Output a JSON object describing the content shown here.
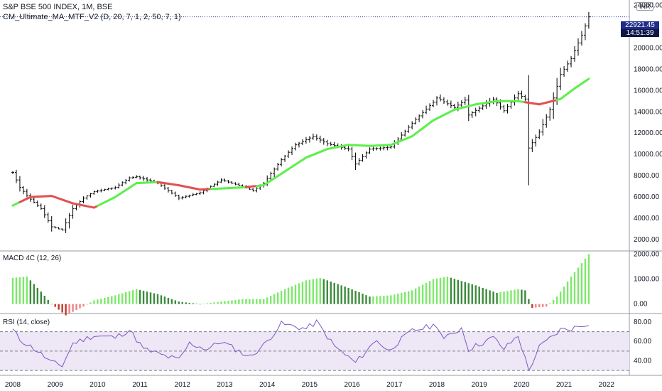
{
  "header": {
    "symbol_line": "S&P BSE 500 INDEX, 1M, BSE",
    "indicator_line": "CM_Ultimate_MA_MTF_V2 (D, 20, 7, 1, 2, 50, 7, 1)",
    "currency": "INR"
  },
  "last_price": {
    "value": "22921.45",
    "countdown": "14:51:39"
  },
  "colors": {
    "up_bar": "#000000",
    "ma_up": "#5cf04a",
    "ma_down": "#e35050",
    "macd_pos_rising": "#7de86b",
    "macd_pos_falling": "#3b8a3b",
    "macd_neg_rising": "#f08080",
    "macd_neg_falling": "#c0392b",
    "rsi_line": "#7e57c2",
    "rsi_band": "#ede7f6"
  },
  "chart_data": [
    {
      "type": "ohlc",
      "name": "S&P BSE 500 INDEX",
      "interval": "1M",
      "x_ticks": [
        "2008",
        "2009",
        "2010",
        "2011",
        "2012",
        "2013",
        "2014",
        "2015",
        "2016",
        "2017",
        "2018",
        "2019",
        "2020",
        "2021",
        "2022"
      ],
      "y_ticks": [
        "24000.00",
        "20000.00",
        "18000.00",
        "16000.00",
        "14000.00",
        "12000.00",
        "10000.00",
        "8000.00",
        "6000.00",
        "4000.00",
        "2000.00"
      ],
      "ylim": [
        1000,
        24500
      ],
      "close_anchors": [
        [
          "2008-01",
          8300
        ],
        [
          "2008-03",
          6900
        ],
        [
          "2008-06",
          5800
        ],
        [
          "2008-09",
          4900
        ],
        [
          "2008-12",
          3200
        ],
        [
          "2009-03",
          2900
        ],
        [
          "2009-06",
          4900
        ],
        [
          "2009-09",
          5900
        ],
        [
          "2009-12",
          6500
        ],
        [
          "2010-06",
          6900
        ],
        [
          "2010-10",
          7800
        ],
        [
          "2010-12",
          7900
        ],
        [
          "2011-06",
          7300
        ],
        [
          "2011-12",
          5900
        ],
        [
          "2012-06",
          6400
        ],
        [
          "2012-12",
          7600
        ],
        [
          "2013-06",
          7000
        ],
        [
          "2013-09",
          6600
        ],
        [
          "2013-12",
          7300
        ],
        [
          "2014-05",
          9500
        ],
        [
          "2014-09",
          10900
        ],
        [
          "2015-02",
          11700
        ],
        [
          "2015-06",
          11000
        ],
        [
          "2015-12",
          10500
        ],
        [
          "2016-02",
          9100
        ],
        [
          "2016-06",
          10500
        ],
        [
          "2016-12",
          10700
        ],
        [
          "2017-07",
          13300
        ],
        [
          "2017-12",
          14900
        ],
        [
          "2018-01",
          15300
        ],
        [
          "2018-06",
          14400
        ],
        [
          "2018-09",
          15100
        ],
        [
          "2018-10",
          13700
        ],
        [
          "2019-05",
          15200
        ],
        [
          "2019-08",
          14100
        ],
        [
          "2019-12",
          15700
        ],
        [
          "2020-02",
          15200
        ],
        [
          "2020-03",
          10600
        ],
        [
          "2020-06",
          12100
        ],
        [
          "2020-09",
          14200
        ],
        [
          "2020-12",
          17500
        ],
        [
          "2021-03",
          19000
        ],
        [
          "2021-06",
          21200
        ],
        [
          "2021-08",
          22921.45
        ]
      ],
      "ma_anchors": [
        [
          "2008-01",
          5200
        ],
        [
          "2008-06",
          6000
        ],
        [
          "2008-12",
          6100
        ],
        [
          "2009-06",
          5400
        ],
        [
          "2009-12",
          5000
        ],
        [
          "2010-06",
          6000
        ],
        [
          "2010-12",
          7300
        ],
        [
          "2011-06",
          7400
        ],
        [
          "2011-12",
          7100
        ],
        [
          "2012-06",
          6700
        ],
        [
          "2012-12",
          6800
        ],
        [
          "2013-06",
          6900
        ],
        [
          "2013-12",
          7100
        ],
        [
          "2014-06",
          8400
        ],
        [
          "2014-12",
          9700
        ],
        [
          "2015-06",
          10500
        ],
        [
          "2015-12",
          10900
        ],
        [
          "2016-06",
          10800
        ],
        [
          "2016-12",
          10900
        ],
        [
          "2017-06",
          11700
        ],
        [
          "2017-12",
          13200
        ],
        [
          "2018-06",
          14200
        ],
        [
          "2018-12",
          14700
        ],
        [
          "2019-06",
          15000
        ],
        [
          "2019-12",
          15000
        ],
        [
          "2020-06",
          14700
        ],
        [
          "2020-12",
          15200
        ],
        [
          "2021-04",
          16200
        ],
        [
          "2021-08",
          17100
        ]
      ],
      "ma_down_ranges": [
        [
          "2008-03",
          "2009-12"
        ],
        [
          "2011-06",
          "2012-08"
        ],
        [
          "2013-07",
          "2013-09"
        ],
        [
          "2020-02",
          "2020-10"
        ]
      ]
    },
    {
      "type": "histogram",
      "name": "MACD 4C (12, 26)",
      "y_ticks": [
        "2000.00",
        "1000.00",
        "0.00"
      ],
      "ylim": [
        -350,
        2100
      ],
      "value_anchors": [
        [
          "2008-01",
          1050
        ],
        [
          "2008-05",
          1100
        ],
        [
          "2008-09",
          500
        ],
        [
          "2008-12",
          0
        ],
        [
          "2009-04",
          -450
        ],
        [
          "2009-09",
          -100
        ],
        [
          "2009-12",
          150
        ],
        [
          "2010-06",
          350
        ],
        [
          "2010-12",
          600
        ],
        [
          "2011-06",
          400
        ],
        [
          "2011-12",
          100
        ],
        [
          "2012-06",
          0
        ],
        [
          "2012-12",
          100
        ],
        [
          "2013-06",
          200
        ],
        [
          "2013-12",
          200
        ],
        [
          "2014-06",
          600
        ],
        [
          "2014-12",
          950
        ],
        [
          "2015-04",
          1050
        ],
        [
          "2015-12",
          650
        ],
        [
          "2016-06",
          300
        ],
        [
          "2016-12",
          350
        ],
        [
          "2017-06",
          550
        ],
        [
          "2017-12",
          1000
        ],
        [
          "2018-04",
          1100
        ],
        [
          "2018-12",
          750
        ],
        [
          "2019-06",
          450
        ],
        [
          "2019-12",
          600
        ],
        [
          "2020-02",
          550
        ],
        [
          "2020-04",
          -150
        ],
        [
          "2020-08",
          -100
        ],
        [
          "2020-11",
          300
        ],
        [
          "2021-03",
          1100
        ],
        [
          "2021-08",
          2000
        ]
      ]
    },
    {
      "type": "line",
      "name": "RSI (14, close)",
      "y_ticks": [
        "80.00",
        "60.00",
        "40.00"
      ],
      "ylim": [
        25,
        88
      ],
      "bands": [
        30,
        50,
        70
      ],
      "value_anchors": [
        [
          "2008-01",
          72
        ],
        [
          "2008-03",
          62
        ],
        [
          "2008-08",
          50
        ],
        [
          "2008-12",
          38
        ],
        [
          "2009-03",
          35
        ],
        [
          "2009-06",
          58
        ],
        [
          "2009-12",
          66
        ],
        [
          "2010-06",
          64
        ],
        [
          "2010-10",
          72
        ],
        [
          "2011-02",
          52
        ],
        [
          "2011-08",
          45
        ],
        [
          "2011-12",
          41
        ],
        [
          "2012-03",
          58
        ],
        [
          "2012-08",
          52
        ],
        [
          "2012-12",
          60
        ],
        [
          "2013-08",
          44
        ],
        [
          "2013-12",
          56
        ],
        [
          "2014-05",
          78
        ],
        [
          "2014-12",
          73
        ],
        [
          "2015-03",
          80
        ],
        [
          "2015-08",
          55
        ],
        [
          "2016-02",
          38
        ],
        [
          "2016-08",
          62
        ],
        [
          "2016-11",
          50
        ],
        [
          "2017-06",
          71
        ],
        [
          "2018-01",
          77
        ],
        [
          "2018-03",
          62
        ],
        [
          "2018-08",
          74
        ],
        [
          "2018-10",
          52
        ],
        [
          "2019-05",
          64
        ],
        [
          "2019-08",
          52
        ],
        [
          "2019-12",
          66
        ],
        [
          "2020-03",
          30
        ],
        [
          "2020-06",
          54
        ],
        [
          "2020-12",
          72
        ],
        [
          "2021-03",
          73
        ],
        [
          "2021-08",
          79
        ]
      ]
    }
  ]
}
